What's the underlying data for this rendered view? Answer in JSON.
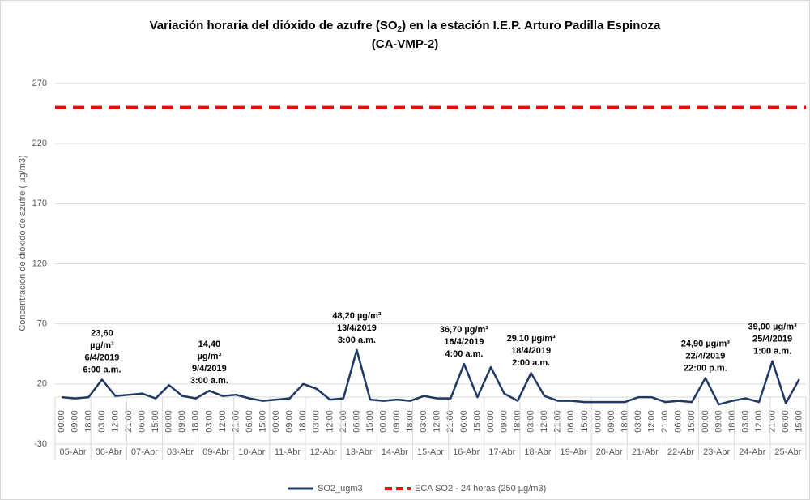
{
  "chart_data": {
    "type": "line",
    "title_parts": [
      "Variación horaria del dióxido de azufre (SO",
      "2",
      ") en la estación I.E.P. Arturo Padilla Espinoza"
    ],
    "title_line2": "(CA-VMP-2)",
    "y_label": "Concentración de dióxido de azufre ( µg/m3)",
    "categories": [
      "00:00",
      "09:00",
      "18:00",
      "03:00",
      "12:00",
      "21:00",
      "06:00",
      "15:00",
      "00:00",
      "09:00",
      "18:00",
      "03:00",
      "12:00",
      "21:00",
      "06:00",
      "15:00",
      "00:00",
      "09:00",
      "18:00",
      "03:00",
      "12:00",
      "21:00",
      "06:00",
      "15:00",
      "00:00",
      "09:00",
      "18:00",
      "03:00",
      "12:00",
      "21:00",
      "06:00",
      "15:00",
      "00:00",
      "09:00",
      "18:00",
      "03:00",
      "12:00",
      "21:00",
      "06:00",
      "15:00",
      "00:00",
      "09:00",
      "18:00",
      "03:00",
      "12:00",
      "21:00",
      "06:00",
      "15:00",
      "00:00",
      "09:00",
      "18:00",
      "03:00",
      "12:00",
      "21:00",
      "06:00",
      "15:00"
    ],
    "days": [
      "05-Abr",
      "06-Abr",
      "07-Abr",
      "08-Abr",
      "09-Abr",
      "10-Abr",
      "11-Abr",
      "12-Abr",
      "13-Abr",
      "14-Abr",
      "15-Abr",
      "16-Abr",
      "17-Abr",
      "18-Abr",
      "19-Abr",
      "20-Abr",
      "21-Abr",
      "22-Abr",
      "23-Abr",
      "24-Abr",
      "25-Abr"
    ],
    "series": [
      {
        "name": "SO2_ugm3",
        "color": "#1f3864",
        "values": [
          9,
          8,
          9,
          23.6,
          10,
          11,
          12,
          8,
          19,
          10,
          8,
          14.4,
          10,
          11,
          8,
          6,
          7,
          8,
          20,
          16,
          7,
          8,
          48.2,
          7,
          6,
          7,
          6,
          10,
          8,
          8,
          36.7,
          9,
          34,
          12,
          6,
          29.1,
          10,
          6,
          6,
          5,
          5,
          5,
          5,
          9,
          9,
          5,
          6,
          5,
          24.9,
          3,
          6,
          8,
          5,
          39,
          4,
          24
        ]
      }
    ],
    "reference_line": {
      "name": "ECA SO2 - 24 horas (250 µg/m3)",
      "value": 250,
      "color": "#ff0000"
    },
    "annotations": [
      {
        "index": 3,
        "lines": [
          "23,60",
          "µg/m³",
          "6/4/2019",
          "6:00 a.m."
        ]
      },
      {
        "index": 11,
        "lines": [
          "14,40",
          "µg/m³",
          "9/4/2019",
          "3:00 a.m."
        ]
      },
      {
        "index": 22,
        "lines": [
          "48,20 µg/m³",
          "13/4/2019",
          "3:00 a.m."
        ]
      },
      {
        "index": 30,
        "lines": [
          "36,70 µg/m³",
          "16/4/2019",
          "4:00 a.m."
        ]
      },
      {
        "index": 35,
        "lines": [
          "29,10 µg/m³",
          "18/4/2019",
          "2:00 a.m."
        ]
      },
      {
        "index": 48,
        "lines": [
          "24,90 µg/m³",
          "22/4/2019",
          "22:00 p.m."
        ]
      },
      {
        "index": 53,
        "lines": [
          "39,00 µg/m³",
          "25/4/2019",
          "1:00 a.m."
        ]
      }
    ],
    "ylim": [
      -30,
      270
    ],
    "yticks": [
      -30,
      20,
      70,
      120,
      170,
      220,
      270
    ],
    "grid": true
  }
}
